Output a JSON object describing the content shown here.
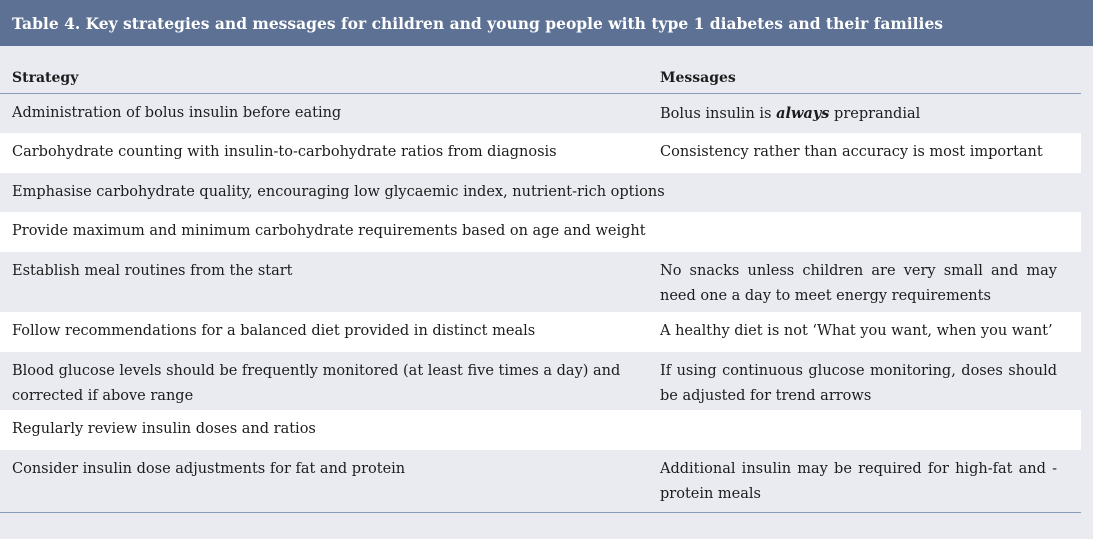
{
  "title": "Table 4. Key strategies and messages for children and young people with type 1 diabetes and their families",
  "headers": {
    "strategy": "Strategy",
    "messages": "Messages"
  },
  "rows": [
    {
      "strategy": "Administration of bolus insulin before eating",
      "message_pre": "Bolus insulin is ",
      "message_em": "always",
      "message_post": " preprandial"
    },
    {
      "strategy": "Carbohydrate counting with insulin-to-carbohydrate ratios from diagnosis",
      "message": "Consistency rather than accuracy is most important"
    },
    {
      "strategy": "Emphasise carbohydrate quality, encouraging low glycaemic index, nutrient-rich options",
      "message": ""
    },
    {
      "strategy": "Provide maximum and minimum carbohydrate requirements based on age and weight",
      "message": ""
    },
    {
      "strategy": "Establish meal routines from the start",
      "message": "No snacks unless children are very small and may need one a day to meet energy requirements"
    },
    {
      "strategy": "Follow recommendations for a balanced diet provided in distinct meals",
      "message": "A healthy diet is not ‘What you want, when you want’"
    },
    {
      "strategy": "Blood glucose levels should be frequently monitored (at least five times a day) and corrected if above range",
      "message": "If using continuous glucose monitoring, doses should be adjusted for trend arrows"
    },
    {
      "strategy": "Regularly review insulin doses and ratios",
      "message": ""
    },
    {
      "strategy": "Consider insulin dose adjustments for fat and protein",
      "message": "Additional insulin may be required for high-fat and -protein meals"
    }
  ]
}
